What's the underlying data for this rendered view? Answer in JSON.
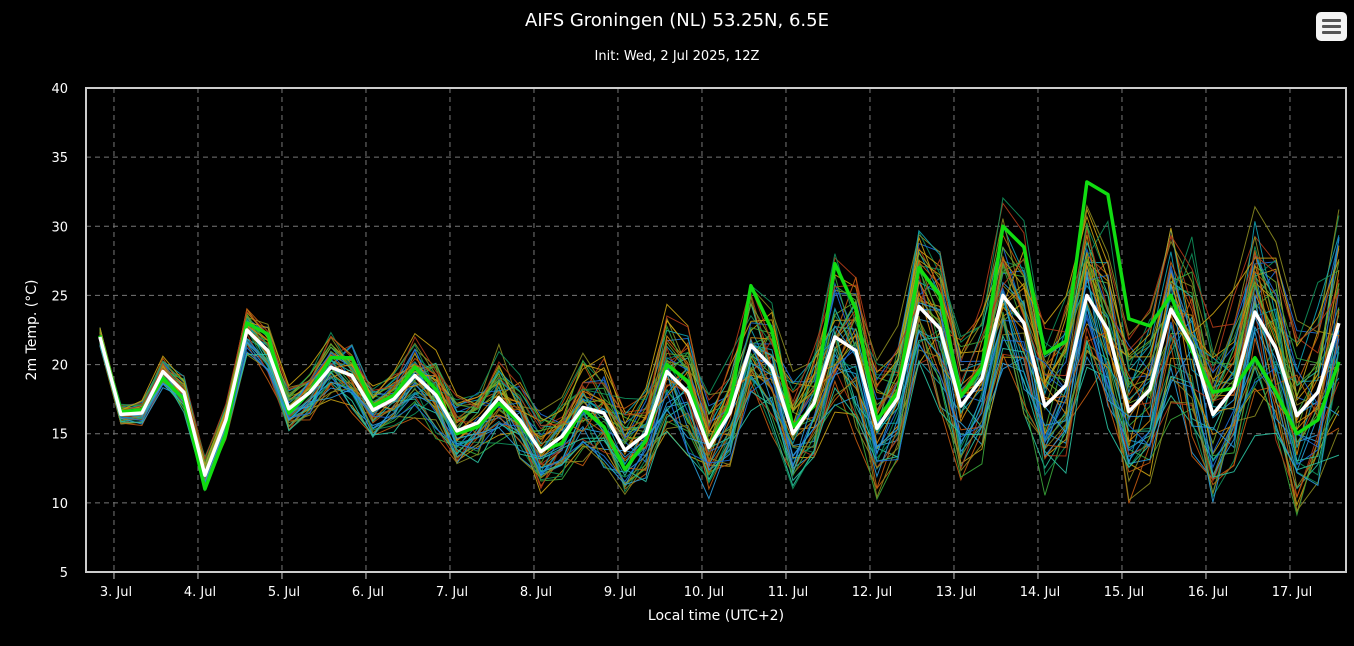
{
  "chart_data": {
    "type": "line",
    "title": "AIFS Groningen (NL) 53.25N, 6.5E",
    "subtitle": "Init: Wed, 2 Jul 2025, 12Z",
    "xlabel": "Local time (UTC+2)",
    "ylabel": "2m Temp. (°C)",
    "ylim": [
      5,
      40
    ],
    "yticks": [
      5,
      10,
      15,
      20,
      25,
      30,
      35,
      40
    ],
    "xlim": [
      2.667,
      17.667
    ],
    "xticks": [
      {
        "day": 3,
        "label": "3. Jul"
      },
      {
        "day": 4,
        "label": "4. Jul"
      },
      {
        "day": 5,
        "label": "5. Jul"
      },
      {
        "day": 6,
        "label": "6. Jul"
      },
      {
        "day": 7,
        "label": "7. Jul"
      },
      {
        "day": 8,
        "label": "8. Jul"
      },
      {
        "day": 9,
        "label": "9. Jul"
      },
      {
        "day": 10,
        "label": "10. Jul"
      },
      {
        "day": 11,
        "label": "11. Jul"
      },
      {
        "day": 12,
        "label": "12. Jul"
      },
      {
        "day": 13,
        "label": "13. Jul"
      },
      {
        "day": 14,
        "label": "14. Jul"
      },
      {
        "day": 15,
        "label": "15. Jul"
      },
      {
        "day": 16,
        "label": "16. Jul"
      },
      {
        "day": 17,
        "label": "17. Jul"
      }
    ],
    "grid": true,
    "x_step_hours": 6,
    "x_start_day": 2.833,
    "series": [
      {
        "role": "mean",
        "color": "#ffffff",
        "values": [
          22.0,
          16.4,
          16.5,
          19.5,
          18.0,
          12.0,
          16.0,
          22.5,
          21.0,
          16.8,
          18.0,
          19.8,
          19.2,
          16.7,
          17.5,
          19.2,
          17.8,
          15.2,
          15.8,
          17.6,
          16.0,
          13.7,
          14.8,
          16.9,
          16.5,
          13.8,
          15.0,
          19.5,
          18.0,
          14.0,
          16.5,
          21.4,
          19.8,
          15.0,
          17.2,
          22.0,
          21.0,
          15.4,
          17.6,
          24.2,
          22.6,
          17.0,
          19.0,
          25.0,
          23.0,
          17.0,
          18.5,
          25.0,
          22.5,
          16.6,
          18.2,
          24.0,
          21.4,
          16.4,
          18.3,
          23.8,
          21.2,
          16.3,
          18.0,
          23.0
        ]
      },
      {
        "role": "control",
        "color": "#11dd11",
        "values": [
          22.1,
          16.6,
          16.7,
          19.0,
          17.5,
          11.0,
          15.0,
          23.0,
          22.2,
          16.5,
          18.0,
          20.5,
          20.5,
          17.0,
          17.8,
          19.8,
          18.2,
          15.0,
          15.5,
          17.2,
          15.8,
          13.8,
          14.3,
          16.8,
          15.5,
          12.4,
          14.5,
          20.0,
          18.8,
          14.0,
          17.0,
          25.7,
          22.5,
          15.5,
          17.0,
          27.3,
          24.0,
          16.0,
          18.0,
          27.0,
          25.0,
          17.7,
          19.8,
          30.0,
          28.5,
          20.8,
          21.7,
          33.2,
          32.3,
          23.3,
          22.8,
          25.0,
          21.0,
          18.0,
          18.3,
          20.5,
          18.0,
          15.0,
          16.0,
          20.2
        ]
      }
    ]
  }
}
